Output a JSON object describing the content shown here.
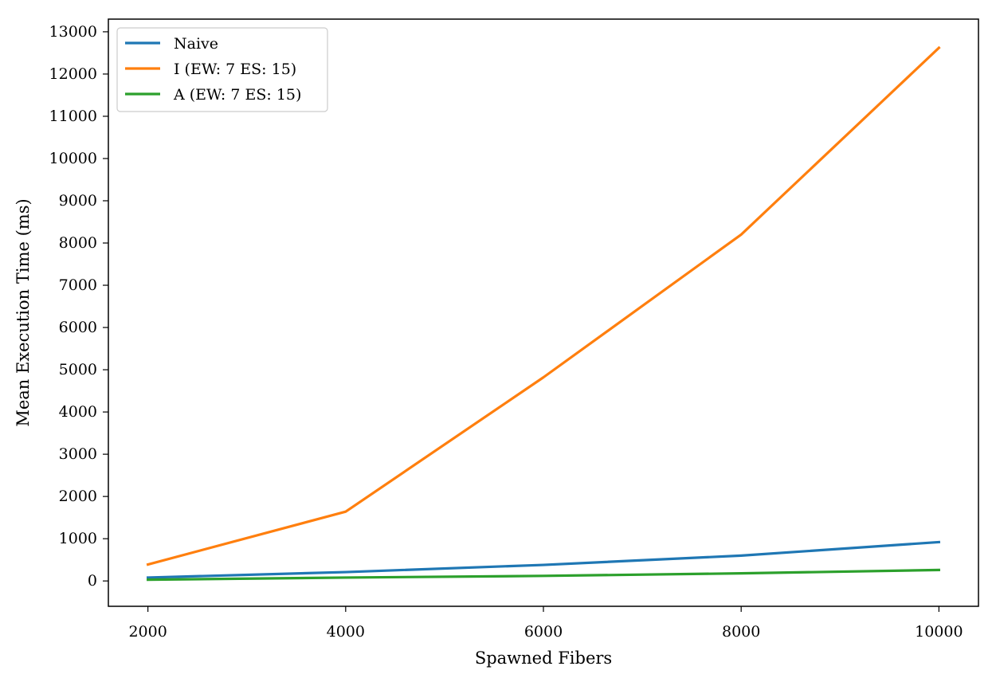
{
  "chart_data": {
    "type": "line",
    "title": "",
    "xlabel": "Spawned Fibers",
    "ylabel": "Mean Execution Time (ms)",
    "x": [
      2000,
      4000,
      6000,
      8000,
      10000
    ],
    "xlim": [
      1600,
      10400
    ],
    "ylim": [
      -600,
      13300
    ],
    "xticks": [
      2000,
      4000,
      6000,
      8000,
      10000
    ],
    "yticks": [
      0,
      1000,
      2000,
      3000,
      4000,
      5000,
      6000,
      7000,
      8000,
      9000,
      10000,
      11000,
      12000,
      13000
    ],
    "grid": false,
    "legend_position": "top-left",
    "series": [
      {
        "name": "Naive",
        "color": "#1f77b4",
        "values": [
          80,
          210,
          380,
          600,
          920
        ]
      },
      {
        "name": "I (EW: 7 ES: 15)",
        "color": "#ff7f0e",
        "values": [
          390,
          1640,
          4820,
          8200,
          12620
        ]
      },
      {
        "name": "A (EW: 7 ES: 15)",
        "color": "#2ca02c",
        "values": [
          30,
          80,
          120,
          180,
          260
        ]
      }
    ]
  }
}
